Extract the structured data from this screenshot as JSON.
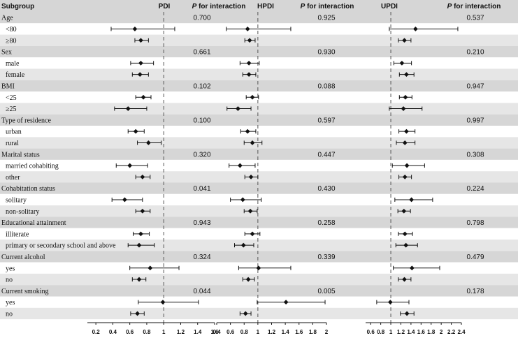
{
  "chart_data": {
    "type": "forest",
    "headers": {
      "subgroup": "Subgroup",
      "panels": [
        "PDI",
        "HPDI",
        "UPDI"
      ],
      "p_label_italic": "P",
      "p_label_rest": " for interaction"
    },
    "panels": [
      {
        "name": "PDI",
        "xlim": [
          0.1,
          1.6
        ],
        "ticks": [
          0.2,
          0.4,
          0.6,
          0.8,
          1,
          1.2,
          1.4,
          1.6
        ],
        "tick_labels": [
          "0.2",
          "0.4",
          "0.6",
          "0.8",
          "1",
          "1.2",
          "1.4",
          "1.6"
        ],
        "ref": 1
      },
      {
        "name": "HPDI",
        "xlim": [
          0.4,
          2.0
        ],
        "ticks": [
          0.4,
          0.6,
          0.8,
          1,
          1.2,
          1.4,
          1.6,
          1.8,
          2
        ],
        "tick_labels": [
          "0.4",
          "0.6",
          "0.8",
          "1",
          "1.2",
          "1.4",
          "1.6",
          "1.8",
          "2"
        ],
        "ref": 1
      },
      {
        "name": "UPDI",
        "xlim": [
          0.5,
          2.4
        ],
        "ticks": [
          0.6,
          0.8,
          1,
          1.2,
          1.4,
          1.6,
          1.8,
          2,
          2.2,
          2.4
        ],
        "tick_labels": [
          "0.6",
          "0.8",
          "1",
          "1.2",
          "1.4",
          "1.6",
          "1.8",
          "2",
          "2.2",
          "2.4"
        ],
        "ref": 1
      }
    ],
    "rows": [
      {
        "label": "Age",
        "group": true,
        "p": [
          "0.700",
          "0.925",
          "0.537"
        ]
      },
      {
        "label": "<80",
        "group": false,
        "est": [
          [
            0.66,
            0.38,
            1.13
          ],
          [
            0.85,
            0.54,
            1.48
          ],
          [
            1.49,
            0.97,
            2.33
          ]
        ]
      },
      {
        "label": "≥80",
        "group": false,
        "est": [
          [
            0.73,
            0.66,
            0.82
          ],
          [
            0.88,
            0.81,
            0.96
          ],
          [
            1.27,
            1.15,
            1.4
          ]
        ]
      },
      {
        "label": "Sex",
        "group": true,
        "p": [
          "0.661",
          "0.930",
          "0.210"
        ]
      },
      {
        "label": "male",
        "group": false,
        "est": [
          [
            0.73,
            0.61,
            0.88
          ],
          [
            0.87,
            0.74,
            1.02
          ],
          [
            1.22,
            1.06,
            1.41
          ]
        ]
      },
      {
        "label": "female",
        "group": false,
        "est": [
          [
            0.72,
            0.63,
            0.82
          ],
          [
            0.87,
            0.78,
            0.97
          ],
          [
            1.31,
            1.17,
            1.46
          ]
        ]
      },
      {
        "label": "BMI",
        "group": true,
        "p": [
          "0.102",
          "0.088",
          "0.947"
        ]
      },
      {
        "label": "<25",
        "group": false,
        "est": [
          [
            0.76,
            0.67,
            0.85
          ],
          [
            0.92,
            0.83,
            1.01
          ],
          [
            1.29,
            1.17,
            1.42
          ]
        ]
      },
      {
        "label": "≥25",
        "group": false,
        "est": [
          [
            0.58,
            0.42,
            0.8
          ],
          [
            0.71,
            0.55,
            0.9
          ],
          [
            1.25,
            0.97,
            1.62
          ]
        ]
      },
      {
        "label": "Type of residence",
        "group": true,
        "p": [
          "0.100",
          "0.597",
          "0.997"
        ]
      },
      {
        "label": "urban",
        "group": false,
        "est": [
          [
            0.67,
            0.58,
            0.77
          ],
          [
            0.85,
            0.75,
            0.97
          ],
          [
            1.31,
            1.16,
            1.48
          ]
        ]
      },
      {
        "label": "rural",
        "group": false,
        "est": [
          [
            0.82,
            0.69,
            0.97
          ],
          [
            0.92,
            0.8,
            1.06
          ],
          [
            1.28,
            1.11,
            1.48
          ]
        ]
      },
      {
        "label": "Marital status",
        "group": true,
        "p": [
          "0.320",
          "0.447",
          "0.308"
        ]
      },
      {
        "label": "married cohabiting",
        "group": false,
        "est": [
          [
            0.6,
            0.44,
            0.81
          ],
          [
            0.74,
            0.58,
            0.96
          ],
          [
            1.32,
            1.03,
            1.67
          ]
        ]
      },
      {
        "label": "other",
        "group": false,
        "est": [
          [
            0.75,
            0.67,
            0.84
          ],
          [
            0.9,
            0.81,
            1.0
          ],
          [
            1.28,
            1.16,
            1.41
          ]
        ]
      },
      {
        "label": "Cohabitation status",
        "group": true,
        "p": [
          "0.041",
          "0.430",
          "0.224"
        ]
      },
      {
        "label": "solitary",
        "group": false,
        "est": [
          [
            0.54,
            0.39,
            0.75
          ],
          [
            0.78,
            0.6,
            1.05
          ],
          [
            1.41,
            1.08,
            1.83
          ]
        ]
      },
      {
        "label": "non-solitary",
        "group": false,
        "est": [
          [
            0.75,
            0.67,
            0.84
          ],
          [
            0.89,
            0.8,
            0.99
          ],
          [
            1.26,
            1.14,
            1.39
          ]
        ]
      },
      {
        "label": "Educational attainment",
        "group": true,
        "p": [
          "0.943",
          "0.258",
          "0.798"
        ]
      },
      {
        "label": "illiterate",
        "group": false,
        "est": [
          [
            0.73,
            0.64,
            0.83
          ],
          [
            0.92,
            0.81,
            1.03
          ],
          [
            1.28,
            1.15,
            1.43
          ]
        ]
      },
      {
        "label": "primary or secondary school and above",
        "group": false,
        "est": [
          [
            0.71,
            0.58,
            0.89
          ],
          [
            0.79,
            0.66,
            0.94
          ],
          [
            1.3,
            1.1,
            1.53
          ]
        ]
      },
      {
        "label": "Current alcohol",
        "group": true,
        "p": [
          "0.324",
          "0.339",
          "0.479"
        ]
      },
      {
        "label": "yes",
        "group": false,
        "est": [
          [
            0.84,
            0.6,
            1.18
          ],
          [
            1.01,
            0.72,
            1.48
          ],
          [
            1.42,
            1.05,
            1.97
          ]
        ]
      },
      {
        "label": "no",
        "group": false,
        "est": [
          [
            0.71,
            0.63,
            0.79
          ],
          [
            0.86,
            0.78,
            0.95
          ],
          [
            1.27,
            1.15,
            1.4
          ]
        ]
      },
      {
        "label": "Current smoking",
        "group": true,
        "p": [
          "0.044",
          "0.005",
          "0.178"
        ]
      },
      {
        "label": "yes",
        "group": false,
        "est": [
          [
            0.99,
            0.7,
            1.41
          ],
          [
            1.41,
            0.99,
            1.98
          ],
          [
            0.99,
            0.72,
            1.36
          ]
        ]
      },
      {
        "label": "no",
        "group": false,
        "est": [
          [
            0.69,
            0.61,
            0.77
          ],
          [
            0.82,
            0.74,
            0.9
          ],
          [
            1.32,
            1.19,
            1.46
          ]
        ]
      }
    ],
    "colors": {
      "group_row_bg": "#d6d6d6",
      "odd_row_bg": "#e6e6e6",
      "even_row_bg": "#ffffff",
      "marker": "#111111",
      "ref_line": "#555555"
    }
  }
}
